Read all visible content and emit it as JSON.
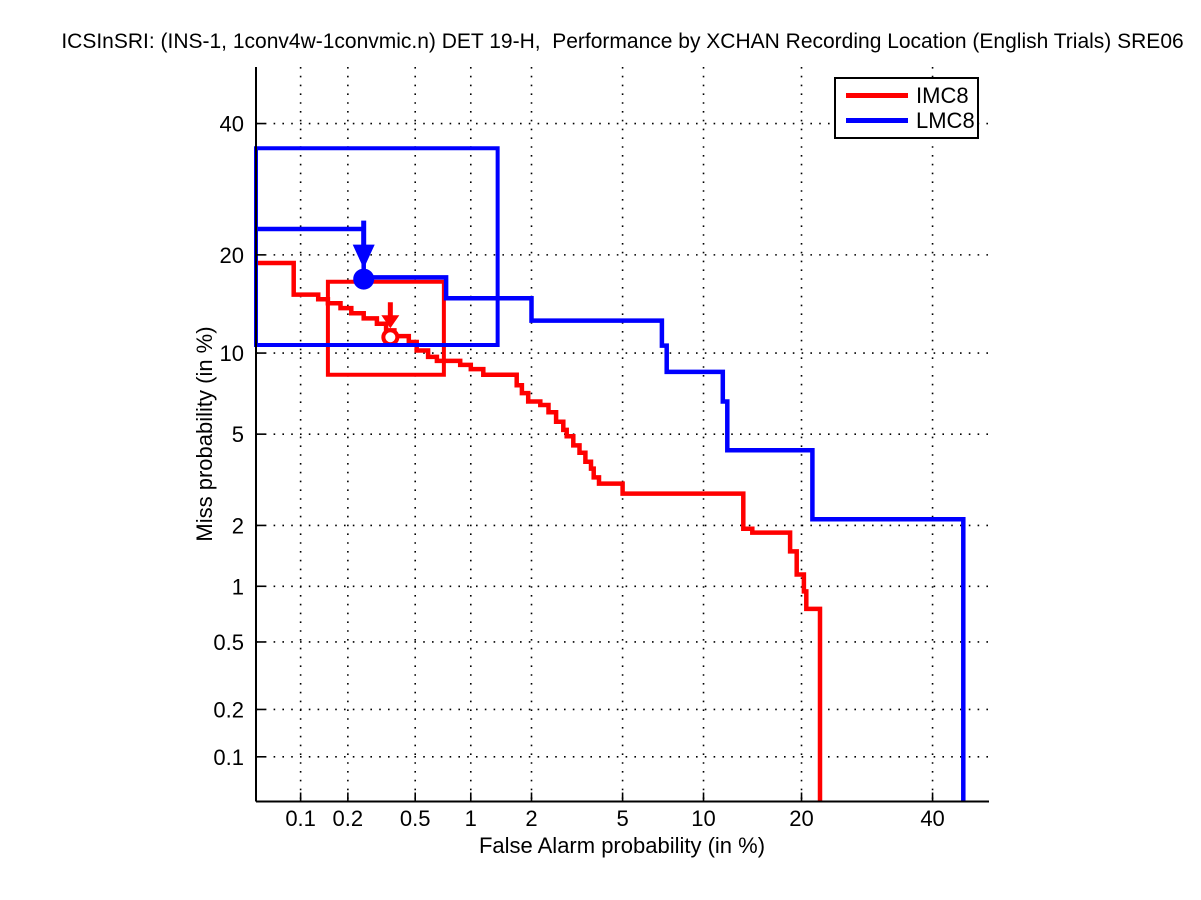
{
  "title": "ICSInSRI: (INS-1, 1conv4w-1convmic.n) DET 19-H,  Performance by XCHAN Recording Location (English Trials) SRE06",
  "axes": {
    "xlabel": "False Alarm probability (in %)",
    "ylabel": "Miss probability (in %)"
  },
  "legend": {
    "position": "upper right",
    "entries": [
      {
        "label": "IMC8",
        "color": "#ff0000"
      },
      {
        "label": "LMC8",
        "color": "#0000ff"
      }
    ]
  },
  "chart_data": {
    "type": "line",
    "subtype": "DET step curves on normal-deviate (probit) scales",
    "title": "ICSInSRI: (INS-1, 1conv4w-1convmic.n) DET 19-H,  Performance by XCHAN Recording Location (English Trials) SRE06",
    "xlabel": "False Alarm probability (in %)",
    "ylabel": "Miss probability (in %)",
    "xlim": [
      0.05,
      50
    ],
    "ylim": [
      0.05,
      50
    ],
    "x_ticks": [
      0.1,
      0.2,
      0.5,
      1,
      2,
      5,
      10,
      20,
      40
    ],
    "y_ticks": [
      0.1,
      0.2,
      0.5,
      1,
      2,
      5,
      10,
      20,
      40
    ],
    "grid": true,
    "legend_position": "upper right",
    "colors": {
      "grid": "#000000",
      "axis": "#000000"
    },
    "series": [
      {
        "name": "IMC8",
        "color": "#ff0000",
        "points": [
          [
            0.05,
            19.0
          ],
          [
            0.09,
            19.0
          ],
          [
            0.09,
            15.4
          ],
          [
            0.13,
            15.4
          ],
          [
            0.13,
            14.9
          ],
          [
            0.15,
            14.9
          ],
          [
            0.15,
            14.5
          ],
          [
            0.18,
            14.5
          ],
          [
            0.18,
            14.0
          ],
          [
            0.21,
            14.0
          ],
          [
            0.21,
            13.5
          ],
          [
            0.25,
            13.5
          ],
          [
            0.25,
            13.0
          ],
          [
            0.3,
            13.0
          ],
          [
            0.3,
            12.5
          ],
          [
            0.34,
            12.5
          ],
          [
            0.34,
            11.9
          ],
          [
            0.38,
            11.9
          ],
          [
            0.38,
            11.4
          ],
          [
            0.46,
            11.4
          ],
          [
            0.46,
            10.9
          ],
          [
            0.51,
            10.9
          ],
          [
            0.51,
            10.2
          ],
          [
            0.59,
            10.2
          ],
          [
            0.59,
            9.7
          ],
          [
            0.66,
            9.7
          ],
          [
            0.66,
            9.4
          ],
          [
            0.88,
            9.4
          ],
          [
            0.88,
            9.1
          ],
          [
            1.0,
            9.1
          ],
          [
            1.0,
            8.8
          ],
          [
            1.16,
            8.8
          ],
          [
            1.16,
            8.4
          ],
          [
            1.7,
            8.4
          ],
          [
            1.7,
            7.7
          ],
          [
            1.8,
            7.7
          ],
          [
            1.8,
            7.2
          ],
          [
            1.93,
            7.2
          ],
          [
            1.93,
            6.7
          ],
          [
            2.2,
            6.7
          ],
          [
            2.2,
            6.5
          ],
          [
            2.4,
            6.5
          ],
          [
            2.4,
            6.1
          ],
          [
            2.6,
            6.1
          ],
          [
            2.6,
            5.6
          ],
          [
            2.8,
            5.6
          ],
          [
            2.8,
            5.2
          ],
          [
            2.9,
            5.2
          ],
          [
            2.9,
            4.9
          ],
          [
            3.1,
            4.9
          ],
          [
            3.1,
            4.5
          ],
          [
            3.3,
            4.5
          ],
          [
            3.3,
            4.2
          ],
          [
            3.5,
            4.2
          ],
          [
            3.5,
            3.85
          ],
          [
            3.7,
            3.85
          ],
          [
            3.7,
            3.6
          ],
          [
            3.8,
            3.6
          ],
          [
            3.8,
            3.3
          ],
          [
            4.0,
            3.3
          ],
          [
            4.0,
            3.1
          ],
          [
            5.0,
            3.1
          ],
          [
            5.0,
            2.8
          ],
          [
            13.5,
            2.8
          ],
          [
            13.5,
            1.93
          ],
          [
            14.4,
            1.93
          ],
          [
            14.4,
            1.85
          ],
          [
            18.6,
            1.85
          ],
          [
            18.6,
            1.5
          ],
          [
            19.4,
            1.5
          ],
          [
            19.4,
            1.15
          ],
          [
            20.3,
            1.15
          ],
          [
            20.3,
            0.94
          ],
          [
            20.6,
            0.94
          ],
          [
            20.6,
            0.76
          ],
          [
            22.4,
            0.76
          ],
          [
            22.4,
            0.05
          ]
        ],
        "box": {
          "fa": [
            0.15,
            0.72
          ],
          "miss": [
            8.4,
            16.8
          ]
        },
        "marker": {
          "fa": 0.36,
          "miss": 11.3,
          "filled": false,
          "arrow_len": 26
        }
      },
      {
        "name": "LMC8",
        "color": "#0000ff",
        "points": [
          [
            0.05,
            23.4
          ],
          [
            0.25,
            23.4
          ],
          [
            0.25,
            17.3
          ],
          [
            0.74,
            17.3
          ],
          [
            0.74,
            15.0
          ],
          [
            2.0,
            15.0
          ],
          [
            2.0,
            12.8
          ],
          [
            7.1,
            12.8
          ],
          [
            7.1,
            10.6
          ],
          [
            7.4,
            10.6
          ],
          [
            7.4,
            8.6
          ],
          [
            11.6,
            8.6
          ],
          [
            11.6,
            6.7
          ],
          [
            12.0,
            6.7
          ],
          [
            12.0,
            4.3
          ],
          [
            21.4,
            4.3
          ],
          [
            21.4,
            2.14
          ],
          [
            45.4,
            2.14
          ],
          [
            45.4,
            0.05
          ]
        ],
        "box": {
          "fa": [
            0.05,
            1.37
          ],
          "miss": [
            10.65,
            35.8
          ]
        },
        "marker": {
          "fa": 0.25,
          "miss": 17.1,
          "filled": true,
          "arrow_len": 48
        }
      }
    ]
  }
}
